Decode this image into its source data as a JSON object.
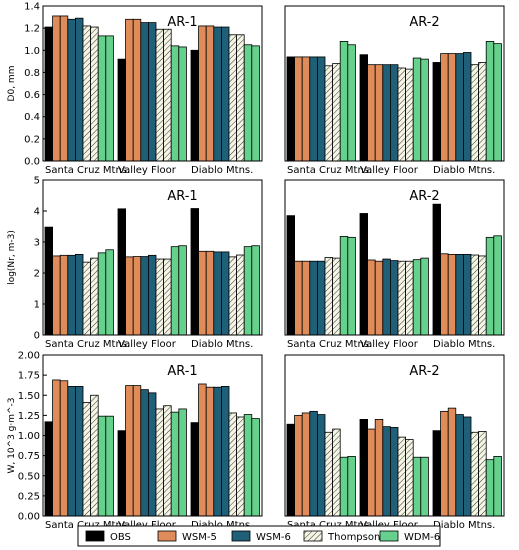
{
  "chart_data": {
    "type": "bar",
    "series_legend": [
      {
        "name": "OBS",
        "color": "#000000",
        "hatch": false
      },
      {
        "name": "WSM-5",
        "color": "#e08c5a",
        "hatch": false
      },
      {
        "name": "WSM-6",
        "color": "#1f5f78",
        "hatch": false
      },
      {
        "name": "Thompson",
        "color": "#f5f5e6",
        "hatch": true
      },
      {
        "name": "WDM-6",
        "color": "#66d18c",
        "hatch": false
      }
    ],
    "categories": [
      "Santa Cruz Mtns.",
      "Valley Floor",
      "Diablo Mtns."
    ],
    "panels": [
      {
        "title": "AR-1",
        "ylabel": "D0, mm",
        "ylim": [
          0,
          1.4
        ],
        "yticks": [
          "0.0",
          "0.2",
          "0.4",
          "0.6",
          "0.8",
          "1.0",
          "1.2",
          "1.4"
        ],
        "values": [
          [
            1.21,
            1.31,
            1.31,
            1.28,
            1.29,
            1.22,
            1.21,
            1.13,
            1.13
          ],
          [
            0.92,
            1.28,
            1.28,
            1.25,
            1.25,
            1.19,
            1.19,
            1.04,
            1.03
          ],
          [
            1.0,
            1.22,
            1.22,
            1.21,
            1.21,
            1.14,
            1.14,
            1.05,
            1.04
          ]
        ]
      },
      {
        "title": "AR-2",
        "ylabel": "",
        "ylim": [
          0,
          1.4
        ],
        "yticks": [],
        "values": [
          [
            0.94,
            0.94,
            0.94,
            0.94,
            0.94,
            0.86,
            0.88,
            1.08,
            1.05
          ],
          [
            0.96,
            0.87,
            0.87,
            0.87,
            0.87,
            0.84,
            0.83,
            0.93,
            0.92
          ],
          [
            0.89,
            0.97,
            0.97,
            0.97,
            0.98,
            0.87,
            0.89,
            1.08,
            1.06
          ]
        ]
      },
      {
        "title": "AR-1",
        "ylabel": "log(Nr, m-3)",
        "ylim": [
          0,
          5
        ],
        "yticks": [
          "0",
          "1",
          "2",
          "3",
          "4",
          "5"
        ],
        "values": [
          [
            3.48,
            2.55,
            2.57,
            2.57,
            2.6,
            2.35,
            2.48,
            2.65,
            2.75
          ],
          [
            4.07,
            2.52,
            2.53,
            2.53,
            2.57,
            2.45,
            2.45,
            2.85,
            2.88
          ],
          [
            4.08,
            2.7,
            2.7,
            2.68,
            2.68,
            2.52,
            2.58,
            2.85,
            2.88
          ]
        ]
      },
      {
        "title": "AR-2",
        "ylabel": "",
        "ylim": [
          0,
          5
        ],
        "yticks": [],
        "values": [
          [
            3.85,
            2.38,
            2.38,
            2.38,
            2.38,
            2.5,
            2.48,
            3.18,
            3.15
          ],
          [
            3.92,
            2.42,
            2.38,
            2.45,
            2.4,
            2.38,
            2.38,
            2.43,
            2.48
          ],
          [
            4.22,
            2.62,
            2.6,
            2.6,
            2.6,
            2.58,
            2.55,
            3.15,
            3.2
          ]
        ]
      },
      {
        "title": "AR-1",
        "ylabel": "W, 10^3 g·m^-3",
        "ylim": [
          0,
          2.0
        ],
        "yticks": [
          "0.00",
          "0.25",
          "0.50",
          "0.75",
          "1.00",
          "1.25",
          "1.50",
          "1.75",
          "2.00"
        ],
        "values": [
          [
            1.17,
            1.69,
            1.68,
            1.61,
            1.61,
            1.41,
            1.5,
            1.24,
            1.24
          ],
          [
            1.06,
            1.62,
            1.62,
            1.57,
            1.53,
            1.33,
            1.37,
            1.29,
            1.33
          ],
          [
            1.16,
            1.64,
            1.6,
            1.6,
            1.61,
            1.28,
            1.23,
            1.26,
            1.21
          ]
        ]
      },
      {
        "title": "AR-2",
        "ylabel": "",
        "ylim": [
          0,
          2.0
        ],
        "yticks": [],
        "values": [
          [
            1.14,
            1.25,
            1.28,
            1.3,
            1.26,
            1.04,
            1.08,
            0.73,
            0.74
          ],
          [
            1.2,
            1.08,
            1.2,
            1.11,
            1.1,
            0.98,
            0.95,
            0.73,
            0.73
          ],
          [
            1.06,
            1.3,
            1.34,
            1.26,
            1.23,
            1.04,
            1.05,
            0.7,
            0.74
          ]
        ]
      }
    ]
  },
  "bar_series_index": [
    0,
    1,
    1,
    2,
    2,
    3,
    3,
    4,
    4
  ]
}
